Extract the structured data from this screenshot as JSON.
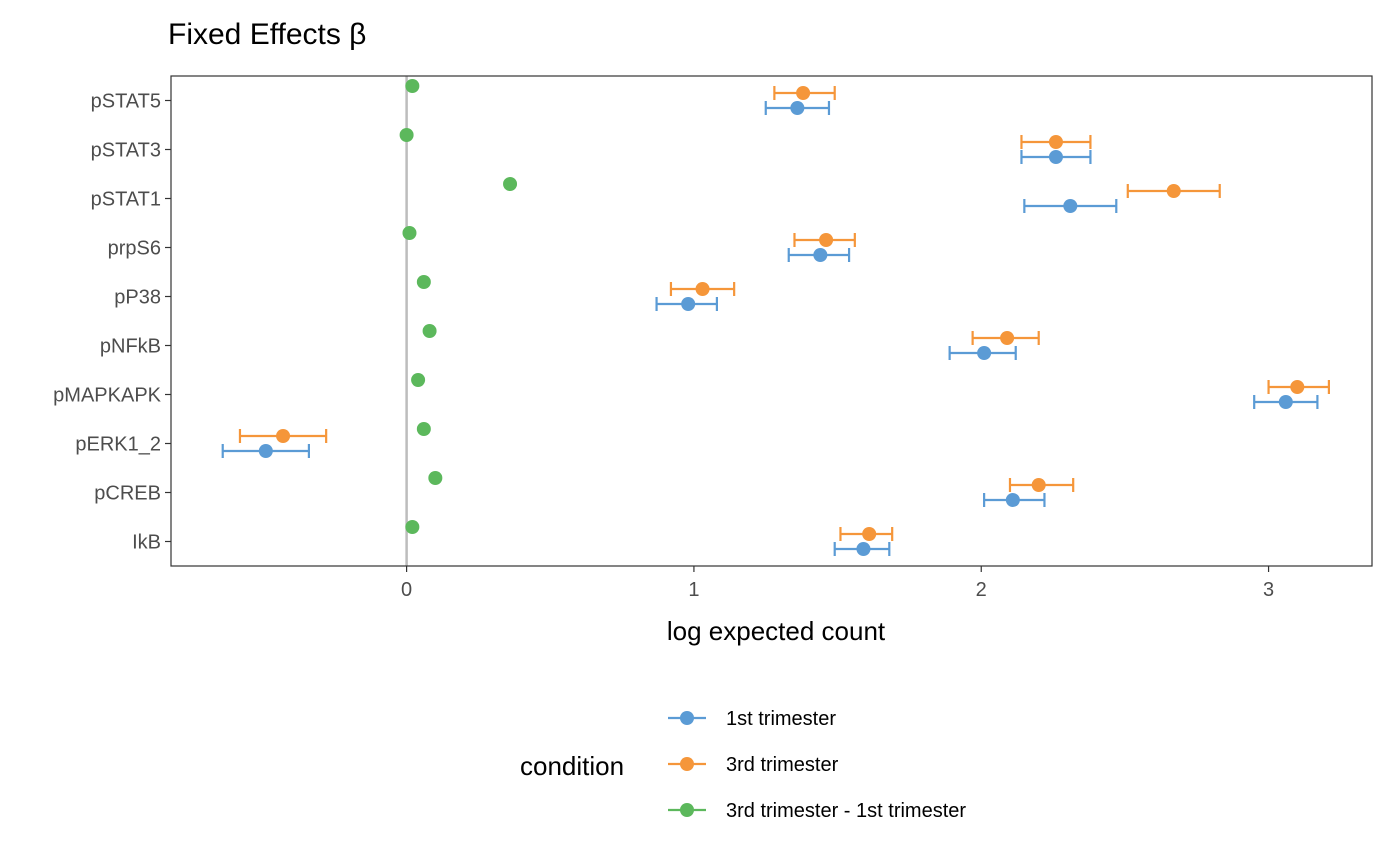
{
  "chart_data": {
    "type": "scatter",
    "title": "Fixed Effects β",
    "xlabel": "log expected count",
    "ylabel": "",
    "xlim": [
      -0.82,
      3.36
    ],
    "x_ticks": [
      0,
      1,
      2,
      3
    ],
    "x_tick_labels": [
      "0",
      "1",
      "2",
      "3"
    ],
    "categories": [
      "pSTAT5",
      "pSTAT3",
      "pSTAT1",
      "prpS6",
      "pP38",
      "pNFkB",
      "pMAPKAPK",
      "pERK1_2",
      "pCREB",
      "IkB"
    ],
    "reference_line_x": 0,
    "grid": false,
    "legend_title": "condition",
    "legend_position": "bottom",
    "series": [
      {
        "name": "1st trimester",
        "color": "#5b9bd5",
        "values": [
          1.36,
          2.26,
          2.31,
          1.44,
          0.98,
          2.01,
          3.06,
          -0.49,
          2.11,
          1.59
        ],
        "lower": [
          1.25,
          2.14,
          2.15,
          1.33,
          0.87,
          1.89,
          2.95,
          -0.64,
          2.01,
          1.49
        ],
        "upper": [
          1.47,
          2.38,
          2.47,
          1.54,
          1.08,
          2.12,
          3.17,
          -0.34,
          2.22,
          1.68
        ]
      },
      {
        "name": "3rd trimester",
        "color": "#f5963a",
        "values": [
          1.38,
          2.26,
          2.67,
          1.46,
          1.03,
          2.09,
          3.1,
          -0.43,
          2.2,
          1.61
        ],
        "lower": [
          1.28,
          2.14,
          2.51,
          1.35,
          0.92,
          1.97,
          3.0,
          -0.58,
          2.1,
          1.51
        ],
        "upper": [
          1.49,
          2.38,
          2.83,
          1.56,
          1.14,
          2.2,
          3.21,
          -0.28,
          2.32,
          1.69
        ]
      },
      {
        "name": "3rd trimester - 1st trimester",
        "color": "#5cb85c",
        "values": [
          0.02,
          0.0,
          0.36,
          0.01,
          0.06,
          0.08,
          0.04,
          0.06,
          0.1,
          0.02
        ]
      }
    ]
  }
}
